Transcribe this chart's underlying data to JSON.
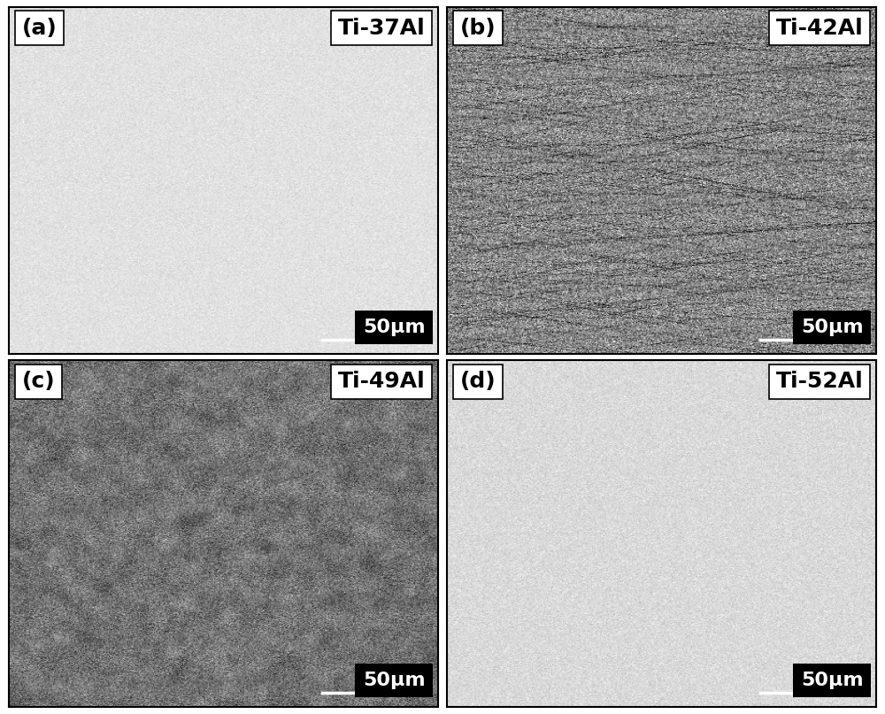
{
  "panels": [
    {
      "label": "(a)",
      "title": "Ti-37Al",
      "row": 0,
      "col": 0,
      "bg_color": "#e8e4df",
      "texture": "light_grain",
      "scale_bg": "black",
      "label_bg": "white"
    },
    {
      "label": "(b)",
      "title": "Ti-42Al",
      "row": 0,
      "col": 1,
      "bg_color": "#888888",
      "texture": "medium_grain",
      "scale_bg": "black",
      "label_bg": "white"
    },
    {
      "label": "(c)",
      "title": "Ti-49Al",
      "row": 1,
      "col": 0,
      "bg_color": "#666666",
      "texture": "dark_grain",
      "scale_bg": "black",
      "label_bg": "white"
    },
    {
      "label": "(d)",
      "title": "Ti-52Al",
      "row": 1,
      "col": 1,
      "bg_color": "#cccccc",
      "texture": "light_dendrite",
      "scale_bg": "black",
      "label_bg": "white"
    }
  ],
  "scale_bar_text": "50μm",
  "figsize": [
    10.0,
    8.07
  ],
  "dpi": 100,
  "outer_bg": "#ffffff",
  "border_color": "#000000",
  "label_fontsize": 18,
  "title_fontsize": 18,
  "scale_fontsize": 16
}
